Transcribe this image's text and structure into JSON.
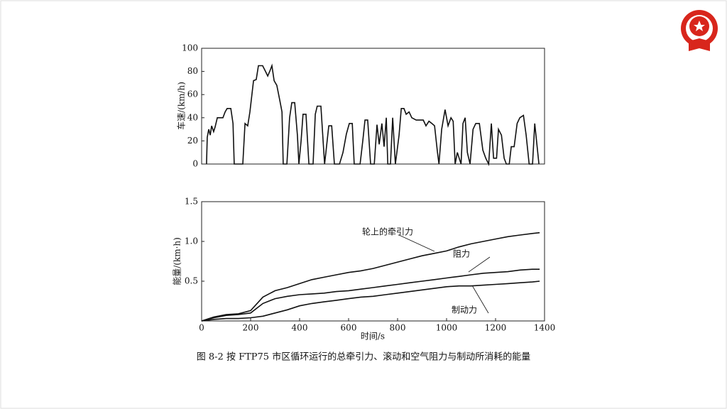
{
  "chart_data": [
    {
      "type": "line",
      "ylabel": "车速/(km/h)",
      "x": [
        20,
        23,
        29,
        35,
        41,
        49,
        55,
        64,
        87,
        96,
        104,
        119,
        128,
        133,
        168,
        177,
        188,
        197,
        212,
        223,
        232,
        249,
        261,
        270,
        278,
        287,
        296,
        307,
        319,
        328,
        333,
        348,
        359,
        368,
        380,
        391,
        397,
        406,
        414,
        426,
        438,
        455,
        464,
        472,
        487,
        496,
        502,
        510,
        519,
        531,
        542,
        563,
        577,
        591,
        603,
        615,
        623,
        647,
        658,
        667,
        678,
        690,
        705,
        716,
        725,
        736,
        745,
        754,
        760,
        771,
        780,
        791,
        806,
        815,
        826,
        835,
        847,
        858,
        876,
        905,
        916,
        928,
        940,
        951,
        963,
        969,
        980,
        994,
        1006,
        1018,
        1027,
        1035,
        1044,
        1059,
        1067,
        1076,
        1085,
        1096,
        1108,
        1119,
        1134,
        1148,
        1160,
        1172,
        1183,
        1192,
        1204,
        1212,
        1224,
        1235,
        1244,
        1256,
        1264,
        1276,
        1288,
        1299,
        1314,
        1325,
        1337,
        1351,
        1360,
        1377
      ],
      "values": [
        0,
        23,
        30,
        25,
        33,
        28,
        32,
        40,
        40,
        45,
        48,
        48,
        35,
        0,
        0,
        35,
        33,
        45,
        72,
        73,
        85,
        85,
        80,
        76,
        80,
        85,
        72,
        68,
        55,
        45,
        0,
        0,
        40,
        53,
        53,
        25,
        0,
        20,
        43,
        43,
        0,
        0,
        43,
        50,
        50,
        20,
        0,
        15,
        33,
        33,
        0,
        0,
        10,
        26,
        35,
        35,
        0,
        0,
        20,
        38,
        38,
        0,
        0,
        34,
        17,
        35,
        15,
        40,
        0,
        0,
        40,
        0,
        25,
        48,
        48,
        43,
        45,
        40,
        38,
        38,
        33,
        37,
        35,
        33,
        10,
        0,
        30,
        47,
        33,
        40,
        37,
        0,
        10,
        0,
        35,
        40,
        10,
        0,
        30,
        35,
        35,
        12,
        5,
        0,
        35,
        5,
        5,
        30,
        25,
        5,
        0,
        0,
        15,
        15,
        35,
        40,
        42,
        25,
        0,
        0,
        35,
        0
      ],
      "color": "#111111",
      "xlim": [
        0,
        1400
      ],
      "ylim": [
        0,
        100
      ],
      "yticks": [
        0,
        20,
        40,
        60,
        80,
        100
      ]
    },
    {
      "type": "line",
      "xlabel": "时间/s",
      "ylabel": "能量/(km·h)",
      "x": [
        0,
        50,
        100,
        150,
        200,
        250,
        300,
        350,
        400,
        450,
        500,
        550,
        600,
        650,
        700,
        750,
        800,
        850,
        900,
        950,
        1000,
        1050,
        1100,
        1150,
        1200,
        1250,
        1300,
        1350,
        1380
      ],
      "series": [
        {
          "name": "轮上的牵引力",
          "color": "#111111",
          "values": [
            0,
            0.05,
            0.08,
            0.09,
            0.13,
            0.3,
            0.38,
            0.42,
            0.47,
            0.52,
            0.55,
            0.58,
            0.61,
            0.63,
            0.66,
            0.7,
            0.74,
            0.78,
            0.82,
            0.85,
            0.88,
            0.93,
            0.97,
            1.0,
            1.03,
            1.06,
            1.08,
            1.1,
            1.11
          ]
        },
        {
          "name": "阻力",
          "color": "#111111",
          "values": [
            0,
            0.04,
            0.07,
            0.08,
            0.1,
            0.22,
            0.28,
            0.31,
            0.33,
            0.34,
            0.35,
            0.37,
            0.38,
            0.4,
            0.42,
            0.44,
            0.46,
            0.48,
            0.5,
            0.52,
            0.54,
            0.56,
            0.58,
            0.6,
            0.61,
            0.62,
            0.64,
            0.65,
            0.65
          ]
        },
        {
          "name": "制动力",
          "color": "#111111",
          "values": [
            0,
            0.02,
            0.03,
            0.03,
            0.04,
            0.06,
            0.1,
            0.14,
            0.19,
            0.22,
            0.24,
            0.26,
            0.28,
            0.3,
            0.31,
            0.33,
            0.35,
            0.37,
            0.39,
            0.41,
            0.43,
            0.44,
            0.44,
            0.45,
            0.46,
            0.47,
            0.48,
            0.49,
            0.5
          ]
        }
      ],
      "xlim": [
        0,
        1400
      ],
      "xticks": [
        0,
        200,
        400,
        600,
        800,
        1000,
        1200,
        1400
      ],
      "ylim": [
        0,
        1.5
      ],
      "yticks": [
        0.5,
        {
          "value": 1,
          "label": "1.0"
        },
        1.5
      ]
    }
  ],
  "caption": "图 8-2   按 FTP75 市区循环运行的总牵引力、滚动和空气阻力与制动所消耗的能量"
}
